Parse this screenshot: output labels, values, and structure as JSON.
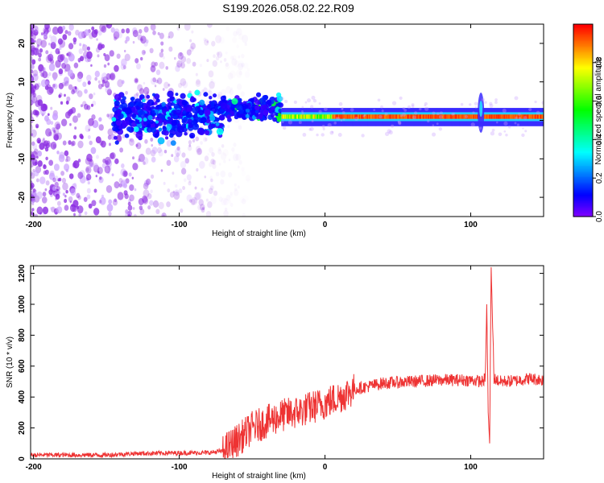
{
  "title": "S199.2026.058.02.22.R09",
  "colors": {
    "snr_line": "#ee3333",
    "axis": "#000000",
    "spectrum_low": "#7a00ff",
    "spectrum_high": "#ff0033"
  },
  "chart_data": [
    {
      "type": "heatmap",
      "name": "spectrogram",
      "xlabel": "Height of straight line (km)",
      "ylabel": "Frequency (Hz)",
      "xlim": [
        -202,
        150
      ],
      "ylim": [
        -25,
        25
      ],
      "xticks": [
        -200,
        -100,
        0,
        100
      ],
      "yticks": [
        -20,
        -10,
        0,
        10,
        20
      ],
      "colorbar": {
        "label": "Normalized spectral amplitude",
        "range": [
          0,
          1
        ],
        "ticks": [
          "0.0",
          "0.2",
          "0.4",
          "0.6",
          "0.8"
        ],
        "tick_values": [
          0.0,
          0.2,
          0.4,
          0.6,
          0.8
        ]
      },
      "main_line_frequency": 1,
      "features": [
        {
          "x_range": [
            -202,
            -150
          ],
          "description": "scattered noise",
          "amplitude": 0.15
        },
        {
          "x_range": [
            -145,
            -70
          ],
          "center_freq": 1,
          "amplitude": 0.3
        },
        {
          "x_range": [
            -70,
            -30
          ],
          "center_freq": 3,
          "amplitude": 0.45
        },
        {
          "x_range": [
            -30,
            150
          ],
          "center_freq": 1,
          "amplitude": 0.95
        },
        {
          "x": 107,
          "description": "vertical disturbance"
        }
      ]
    },
    {
      "type": "line",
      "name": "snr",
      "xlabel": "Height of straight line (km)",
      "ylabel": "SNR (10 * v/v)",
      "xlim": [
        -202,
        150
      ],
      "ylim": [
        0,
        1250
      ],
      "xticks": [
        -200,
        -100,
        0,
        100
      ],
      "yticks": [
        0,
        200,
        400,
        600,
        800,
        1000,
        1200
      ],
      "series": [
        {
          "name": "SNR",
          "control_x": [
            -202,
            -150,
            -130,
            -80,
            -70,
            -60,
            -50,
            -40,
            -30,
            -20,
            -10,
            0,
            10,
            20,
            30,
            40,
            60,
            80,
            100,
            108,
            110,
            111,
            112,
            113,
            114,
            116,
            120,
            130,
            140,
            150
          ],
          "control_y": [
            25,
            25,
            35,
            40,
            50,
            120,
            200,
            240,
            280,
            300,
            330,
            360,
            400,
            450,
            470,
            490,
            500,
            510,
            510,
            500,
            520,
            1000,
            300,
            100,
            1240,
            520,
            500,
            505,
            520,
            510
          ]
        }
      ]
    }
  ]
}
